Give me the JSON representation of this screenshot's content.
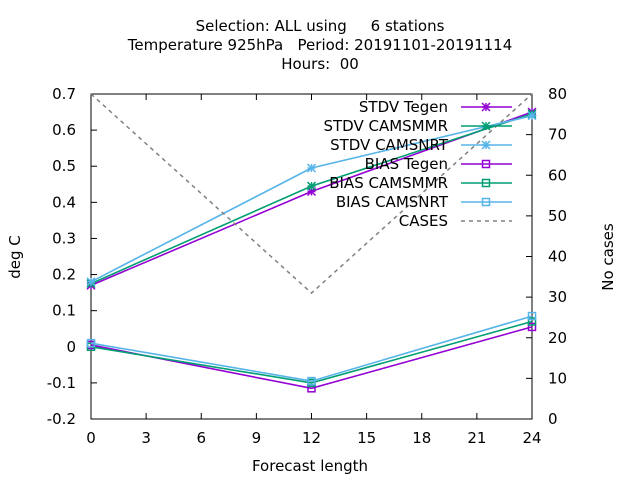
{
  "chart_data": {
    "type": "line",
    "title_lines": [
      "Selection: ALL using     6 stations",
      "Temperature 925hPa   Period: 20191101-20191114",
      "Hours:  00"
    ],
    "xlabel": "Forecast length",
    "ylabel": "deg C",
    "y2label": "No cases",
    "xlim": [
      0,
      24
    ],
    "ylim": [
      -0.2,
      0.7
    ],
    "y2lim": [
      0,
      80
    ],
    "xticks": [
      0,
      3,
      6,
      9,
      12,
      15,
      18,
      21,
      24
    ],
    "yticks": [
      -0.2,
      -0.1,
      0,
      0.1,
      0.2,
      0.3,
      0.4,
      0.5,
      0.6,
      0.7
    ],
    "y2ticks": [
      0,
      10,
      20,
      30,
      40,
      50,
      60,
      70,
      80
    ],
    "ytick_labels": [
      "-0.2",
      "-0.1",
      "0",
      "0.1",
      "0.2",
      "0.3",
      "0.4",
      "0.5",
      "0.6",
      "0.7"
    ],
    "grid": false,
    "legend_position": "top-right",
    "x": [
      0,
      12,
      24
    ],
    "series": [
      {
        "name": "STDV Tegen",
        "color": "#9400d3",
        "marker": "x-star",
        "axis": "y1",
        "values": [
          0.17,
          0.43,
          0.65
        ]
      },
      {
        "name": "STDV CAMSMMR",
        "color": "#009e73",
        "marker": "x-star",
        "axis": "y1",
        "values": [
          0.175,
          0.445,
          0.645
        ]
      },
      {
        "name": "STDV CAMSNRT",
        "color": "#56b4e9",
        "marker": "x-star",
        "axis": "y1",
        "values": [
          0.18,
          0.495,
          0.64
        ]
      },
      {
        "name": "BIAS Tegen",
        "color": "#9400d3",
        "marker": "square",
        "axis": "y1",
        "values": [
          0.005,
          -0.115,
          0.055
        ]
      },
      {
        "name": "BIAS CAMSMMR",
        "color": "#009e73",
        "marker": "square",
        "axis": "y1",
        "values": [
          0.0,
          -0.1,
          0.07
        ]
      },
      {
        "name": "BIAS CAMSNRT",
        "color": "#56b4e9",
        "marker": "square",
        "axis": "y1",
        "values": [
          0.01,
          -0.095,
          0.085
        ]
      },
      {
        "name": "CASES",
        "color": "#808080",
        "marker": "none",
        "dash": true,
        "axis": "y2",
        "values": [
          80,
          31,
          80
        ]
      }
    ]
  }
}
